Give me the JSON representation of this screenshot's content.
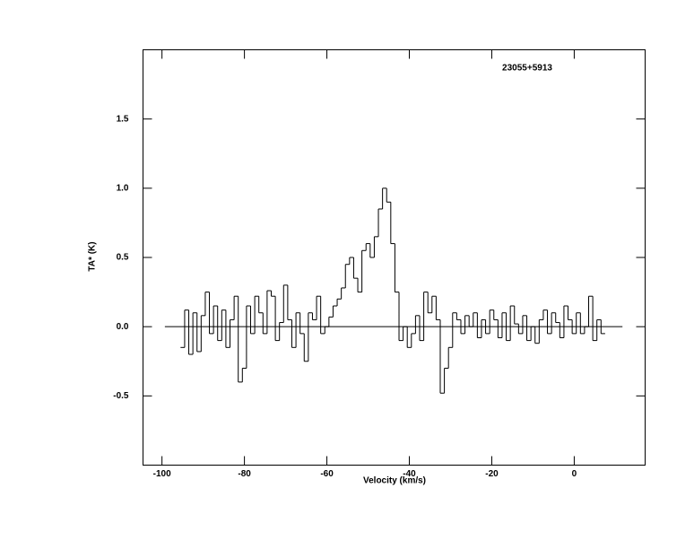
{
  "chart_data": {
    "type": "step",
    "annotation": "23055+5913",
    "xlabel": "Velocity (km/s)",
    "ylabel": "TA* (K)",
    "xlim": [
      -104.6,
      17.2
    ],
    "ylim": [
      -1.0,
      2.0
    ],
    "xticks": [
      -100,
      -80,
      -60,
      -40,
      -20,
      0
    ],
    "yticks": [
      -0.5,
      {
        "value": 0,
        "label": "0.0"
      },
      0.5,
      {
        "value": 1,
        "label": "1.0"
      },
      1.5
    ],
    "zero_line_x": [
      -99.3,
      11.7
    ],
    "color": "#000000",
    "x": [
      -95,
      -94,
      -93,
      -92,
      -91,
      -90,
      -89,
      -88,
      -87,
      -86,
      -85,
      -84,
      -83,
      -82,
      -81,
      -80,
      -79,
      -78,
      -77,
      -76,
      -75,
      -74,
      -73,
      -72,
      -71,
      -70,
      -69,
      -68,
      -67,
      -66,
      -65,
      -64,
      -63,
      -62,
      -61,
      -60,
      -59,
      -58,
      -57,
      -56,
      -55,
      -54,
      -53,
      -52,
      -51,
      -50,
      -49,
      -48,
      -47,
      -46,
      -45,
      -44,
      -43,
      -42,
      -41,
      -40,
      -39,
      -38,
      -37,
      -36,
      -35,
      -34,
      -33,
      -32,
      -31,
      -30,
      -29,
      -28,
      -27,
      -26,
      -25,
      -24,
      -23,
      -22,
      -21,
      -20,
      -19,
      -18,
      -17,
      -16,
      -15,
      -14,
      -13,
      -12,
      -11,
      -10,
      -9,
      -8,
      -7,
      -6,
      -5,
      -4,
      -3,
      -2,
      -1,
      0,
      1,
      2,
      3,
      4,
      5,
      6,
      7
    ],
    "values": [
      -0.15,
      0.12,
      -0.2,
      0.1,
      -0.18,
      0.08,
      0.25,
      -0.05,
      0.15,
      -0.1,
      0.12,
      -0.15,
      0.05,
      0.22,
      -0.4,
      -0.3,
      0.15,
      -0.05,
      0.22,
      0.1,
      -0.05,
      0.26,
      0.22,
      -0.1,
      0.03,
      0.3,
      0.05,
      -0.15,
      0.1,
      -0.05,
      -0.25,
      0.1,
      0.05,
      0.22,
      -0.05,
      0.0,
      0.07,
      0.15,
      0.2,
      0.28,
      0.45,
      0.5,
      0.35,
      0.25,
      0.55,
      0.6,
      0.5,
      0.65,
      0.85,
      1.0,
      0.9,
      0.6,
      0.25,
      -0.1,
      0.0,
      -0.15,
      -0.05,
      0.08,
      -0.1,
      0.25,
      0.1,
      0.22,
      0.05,
      -0.48,
      -0.3,
      -0.15,
      0.1,
      0.05,
      -0.05,
      0.08,
      0.0,
      0.1,
      -0.08,
      0.05,
      -0.05,
      0.12,
      0.05,
      -0.08,
      0.1,
      -0.1,
      0.15,
      0.02,
      -0.05,
      0.08,
      -0.1,
      0.0,
      -0.12,
      0.05,
      0.12,
      -0.05,
      0.1,
      0.03,
      -0.08,
      0.15,
      0.05,
      -0.05,
      0.1,
      -0.05,
      0.0,
      0.22,
      -0.1,
      0.05,
      -0.05
    ]
  }
}
